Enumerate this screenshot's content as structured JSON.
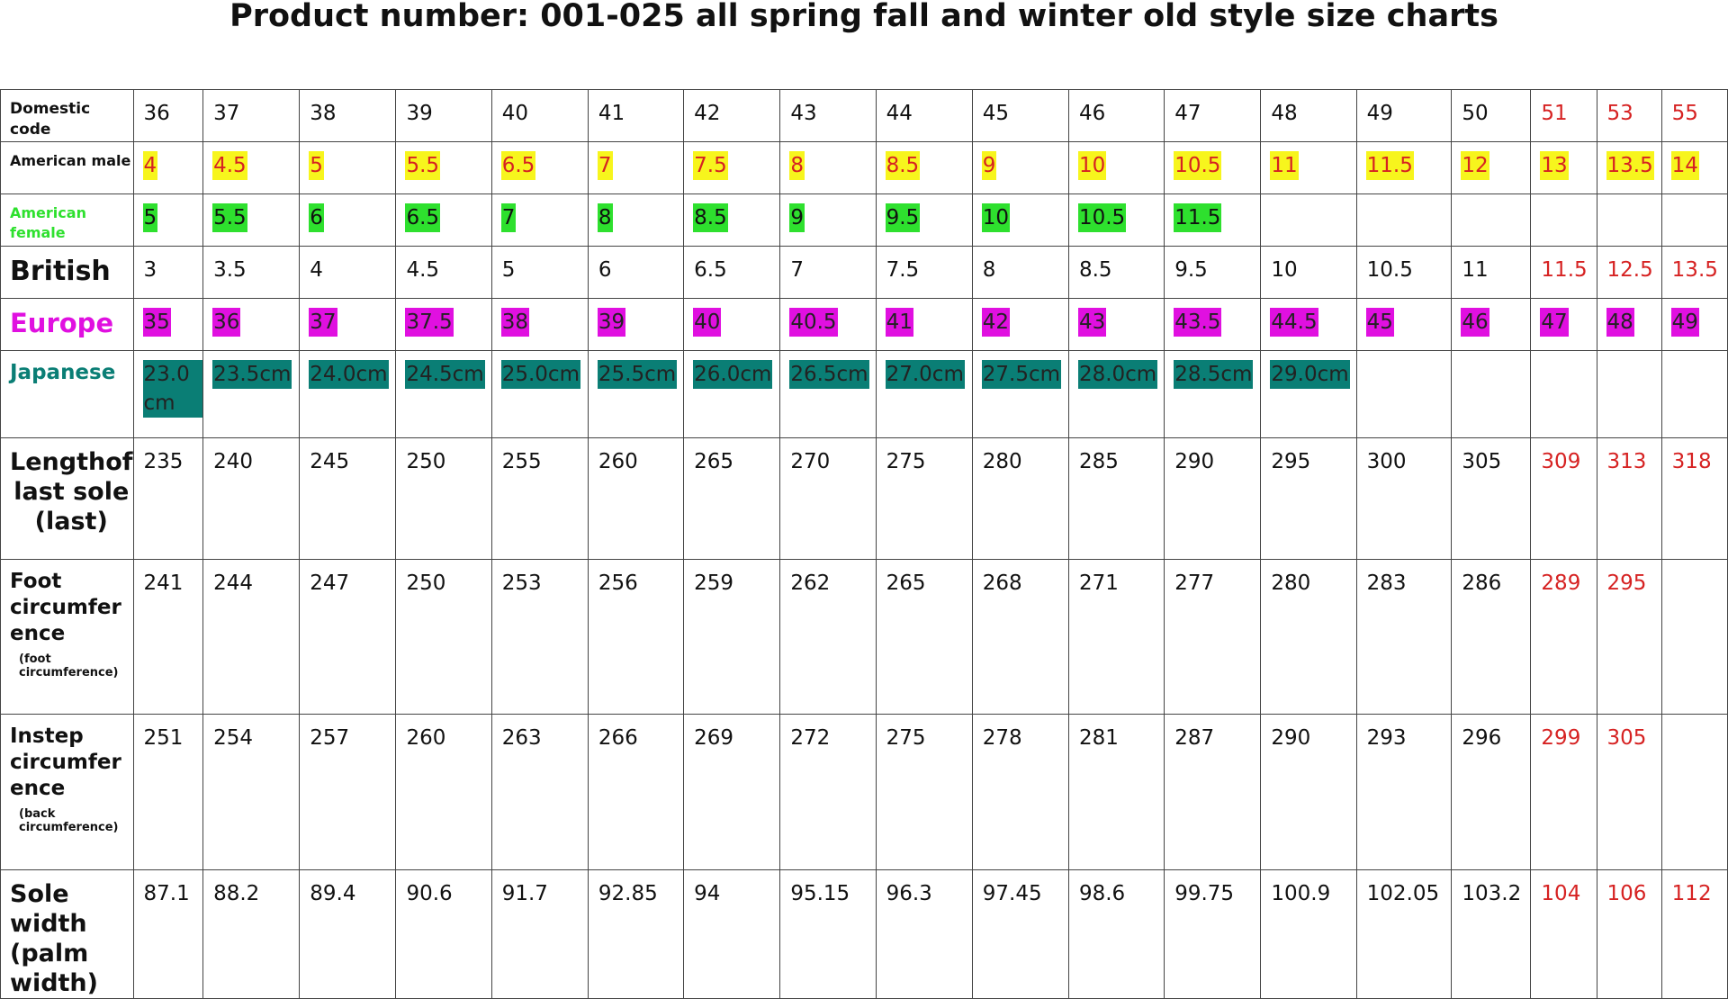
{
  "title": "Product number: 001-025 all spring fall and winter old style size charts",
  "colors": {
    "red": "#d62222",
    "yellow": "#f7f51d",
    "green": "#2ee02e",
    "magenta": "#e010e0",
    "teal": "#0a7e75",
    "europe_label": "#e010e0",
    "japan_label": "#0a7e75",
    "female_label": "#2ee02e"
  },
  "rows": [
    {
      "label": "Domestic code",
      "sub": "",
      "values": [
        "36",
        "37",
        "38",
        "39",
        "40",
        "41",
        "42",
        "43",
        "44",
        "45",
        "46",
        "47",
        "48",
        "49",
        "50",
        "51",
        "53",
        "55"
      ],
      "red_from": 15,
      "hl": ""
    },
    {
      "label": "American male",
      "sub": "",
      "values": [
        "4",
        "4.5",
        "5",
        "5.5",
        "6.5",
        "7",
        "7.5",
        "8",
        "8.5",
        "9",
        "10",
        "10.5",
        "11",
        "11.5",
        "12",
        "13",
        "13.5",
        "14"
      ],
      "red_from": 99,
      "hl": "yellow"
    },
    {
      "label": "American female",
      "sub": "",
      "values": [
        "5",
        "5.5",
        "6",
        "6.5",
        "7",
        "8",
        "8.5",
        "9",
        "9.5",
        "10",
        "10.5",
        "11.5",
        "",
        "",
        "",
        "",
        "",
        ""
      ],
      "red_from": 99,
      "hl": "green"
    },
    {
      "label": "British",
      "sub": "",
      "values": [
        "3",
        "3.5",
        "4",
        "4.5",
        "5",
        "6",
        "6.5",
        "7",
        "7.5",
        "8",
        "8.5",
        "9.5",
        "10",
        "10.5",
        "11",
        "11.5",
        "12.5",
        "13.5"
      ],
      "red_from": 15,
      "hl": ""
    },
    {
      "label": "Europe",
      "sub": "",
      "values": [
        "35",
        "36",
        "37",
        "37.5",
        "38",
        "39",
        "40",
        "40.5",
        "41",
        "42",
        "43",
        "43.5",
        "44.5",
        "45",
        "46",
        "47",
        "48",
        "49"
      ],
      "red_from": 99,
      "hl": "magenta"
    },
    {
      "label": "Japanese",
      "sub": "",
      "values": [
        "23.0 cm",
        "23.5cm",
        "24.0cm",
        "24.5cm",
        "25.0cm",
        "25.5cm",
        "26.0cm",
        "26.5cm",
        "27.0cm",
        "27.5cm",
        "28.0cm",
        "28.5cm",
        "29.0cm",
        "",
        "",
        "",
        "",
        ""
      ],
      "red_from": 99,
      "hl": "teal"
    },
    {
      "label": "Lengthof last sole (last)",
      "sub": "",
      "values": [
        "235",
        "240",
        "245",
        "250",
        "255",
        "260",
        "265",
        "270",
        "275",
        "280",
        "285",
        "290",
        "295",
        "300",
        "305",
        "309",
        "313",
        "318"
      ],
      "red_from": 15,
      "hl": ""
    },
    {
      "label": "Foot circumfer ence",
      "sub": "(foot circumference)",
      "values": [
        "241",
        "244",
        "247",
        "250",
        "253",
        "256",
        "259",
        "262",
        "265",
        "268",
        "271",
        "277",
        "280",
        "283",
        "286",
        "289",
        "295",
        ""
      ],
      "red_from": 15,
      "hl": ""
    },
    {
      "label": "Instep circumfer ence",
      "sub": "(back circumference)",
      "values": [
        "251",
        "254",
        "257",
        "260",
        "263",
        "266",
        "269",
        "272",
        "275",
        "278",
        "281",
        "287",
        "290",
        "293",
        "296",
        "299",
        "305",
        ""
      ],
      "red_from": 15,
      "hl": ""
    },
    {
      "label": "Sole width (palm width)",
      "sub": "",
      "values": [
        "87.1",
        "88.2",
        "89.4",
        "90.6",
        "91.7",
        "92.85",
        "94",
        "95.15",
        "96.3",
        "97.45",
        "98.6",
        "99.75",
        "100.9",
        "102.05",
        "103.2",
        "104",
        "106",
        "112"
      ],
      "red_from": 15,
      "hl": ""
    }
  ]
}
